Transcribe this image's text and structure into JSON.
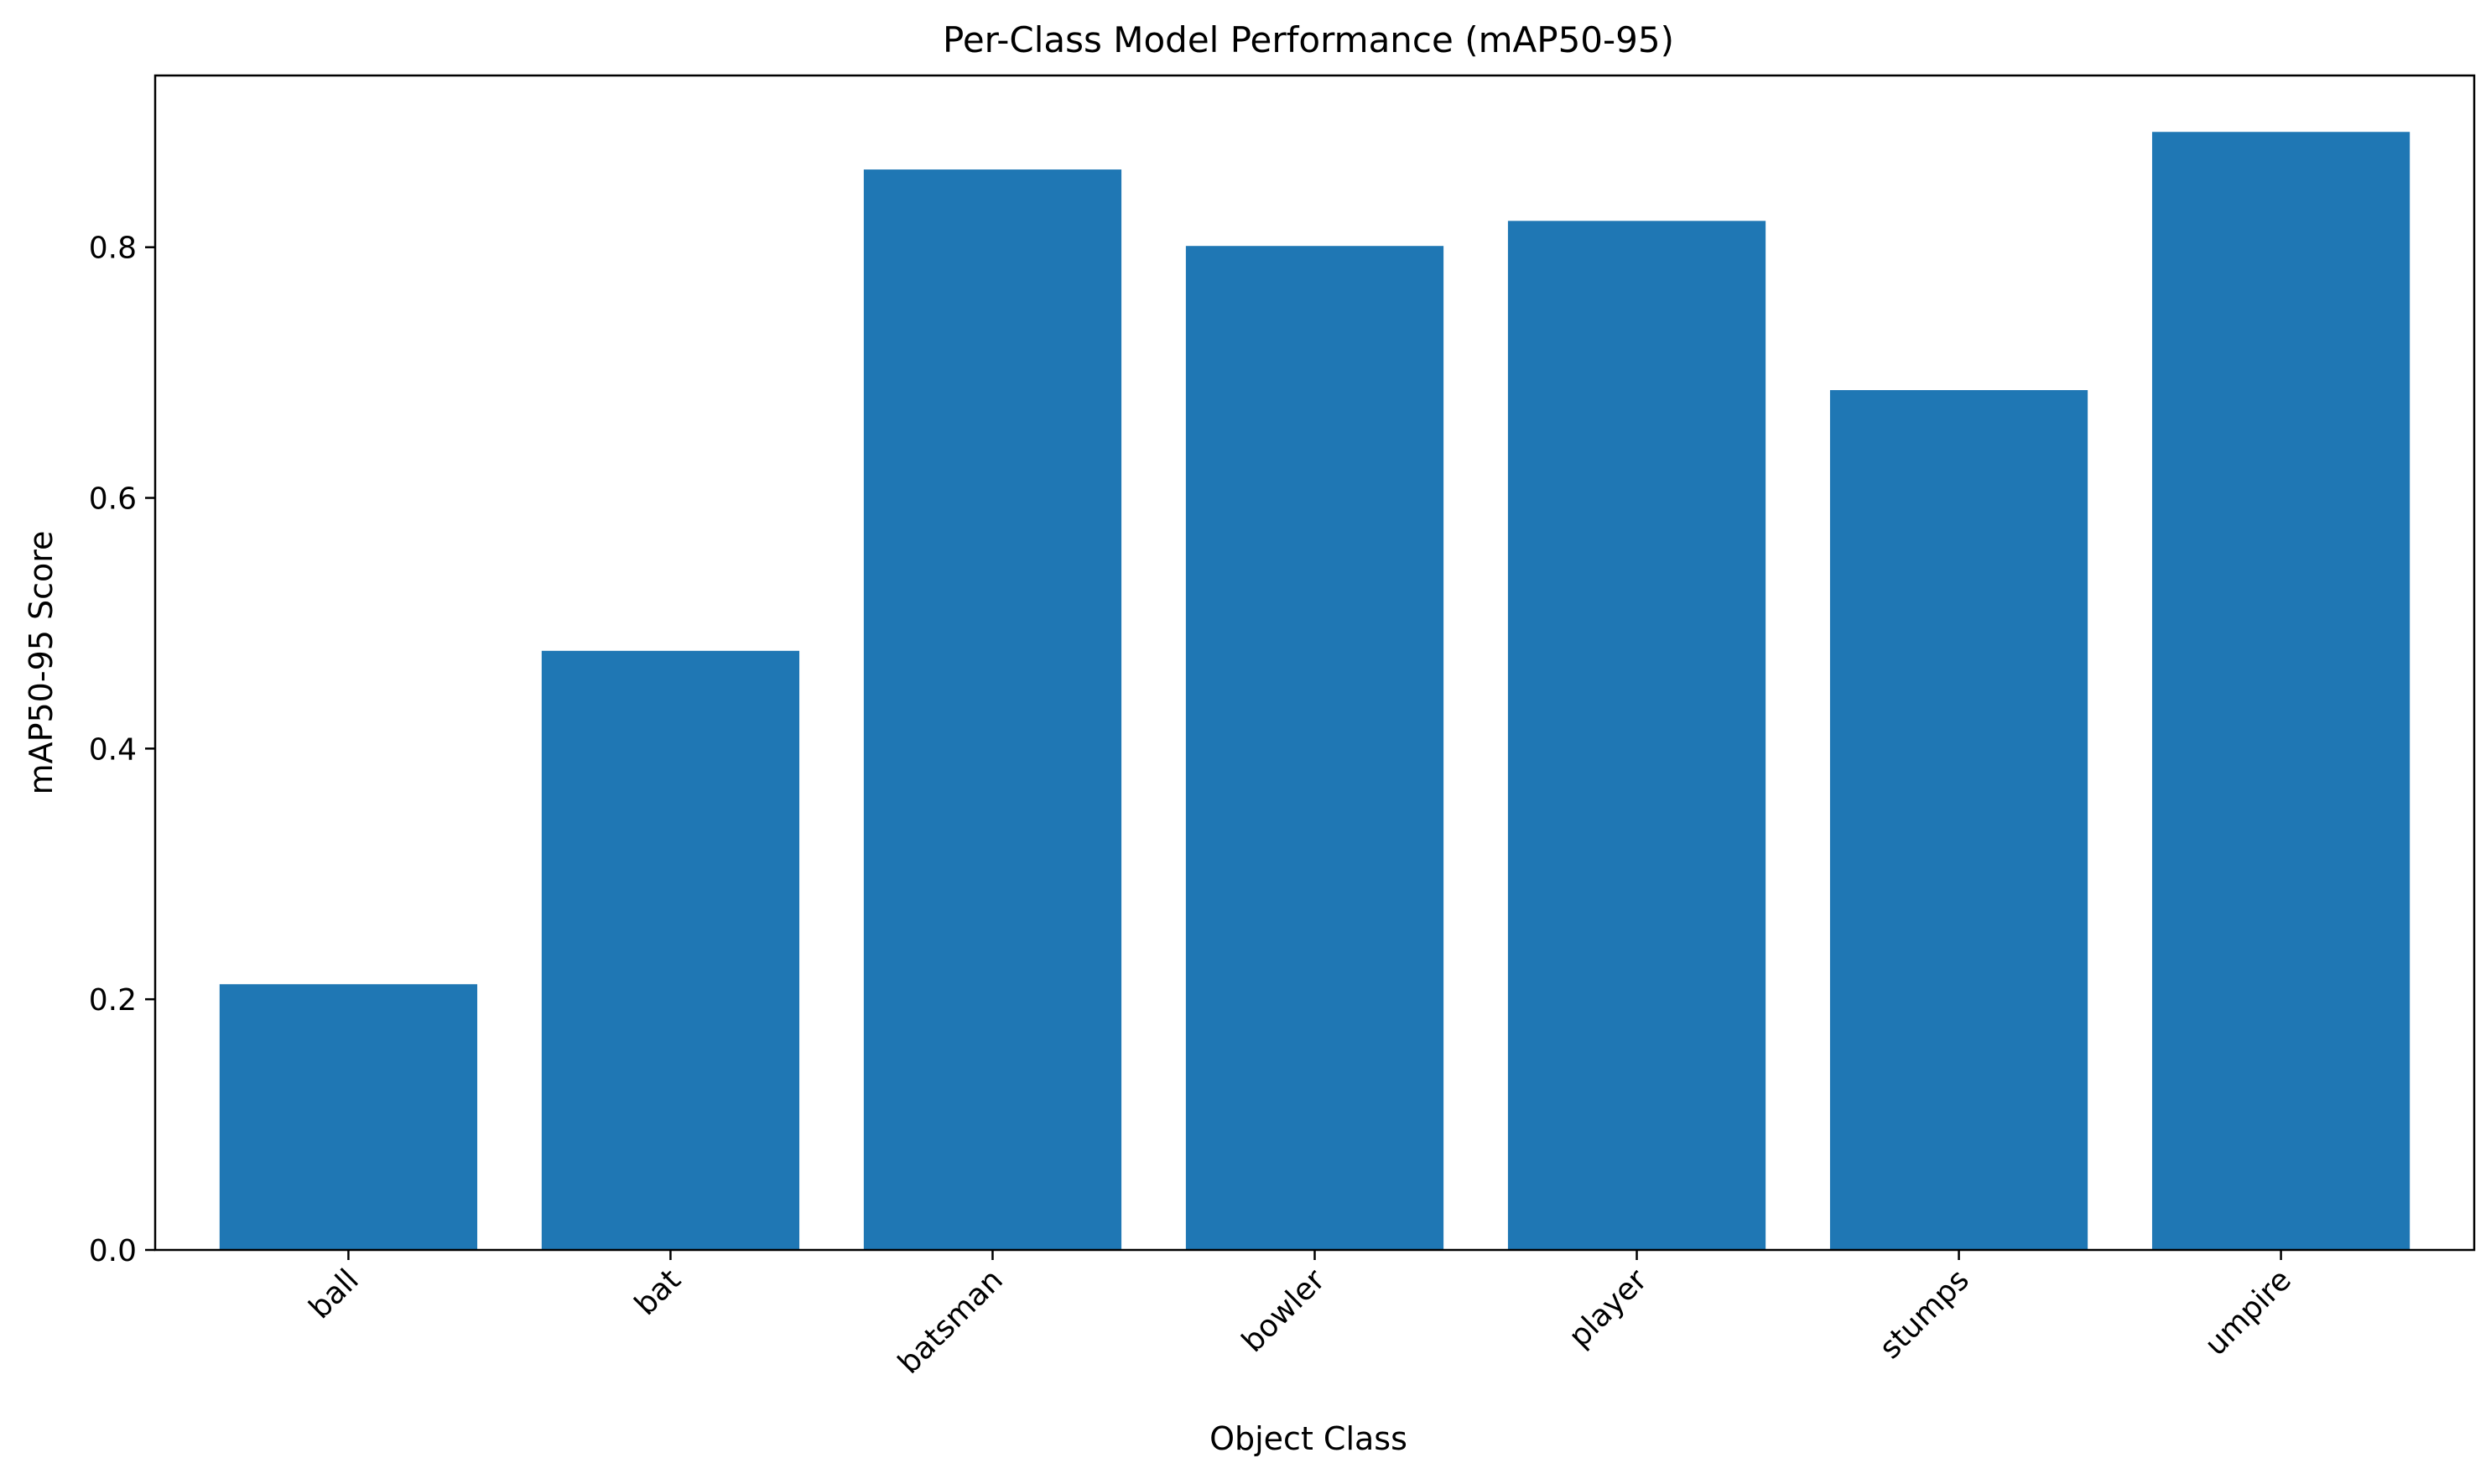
{
  "chart_data": {
    "type": "bar",
    "title": "Per-Class Model Performance (mAP50-95)",
    "xlabel": "Object Class",
    "ylabel": "mAP50-95 Score",
    "categories": [
      "ball",
      "bat",
      "batsman",
      "bowler",
      "player",
      "stumps",
      "umpire"
    ],
    "values": [
      0.212,
      0.478,
      0.862,
      0.801,
      0.821,
      0.686,
      0.892
    ],
    "ylim": [
      0,
      0.937
    ],
    "yticks": [
      0.0,
      0.2,
      0.4,
      0.6,
      0.8
    ],
    "ytick_labels": [
      "0.0",
      "0.2",
      "0.4",
      "0.6",
      "0.8"
    ],
    "bar_color": "#1f77b4",
    "grid": false,
    "legend": "none"
  }
}
